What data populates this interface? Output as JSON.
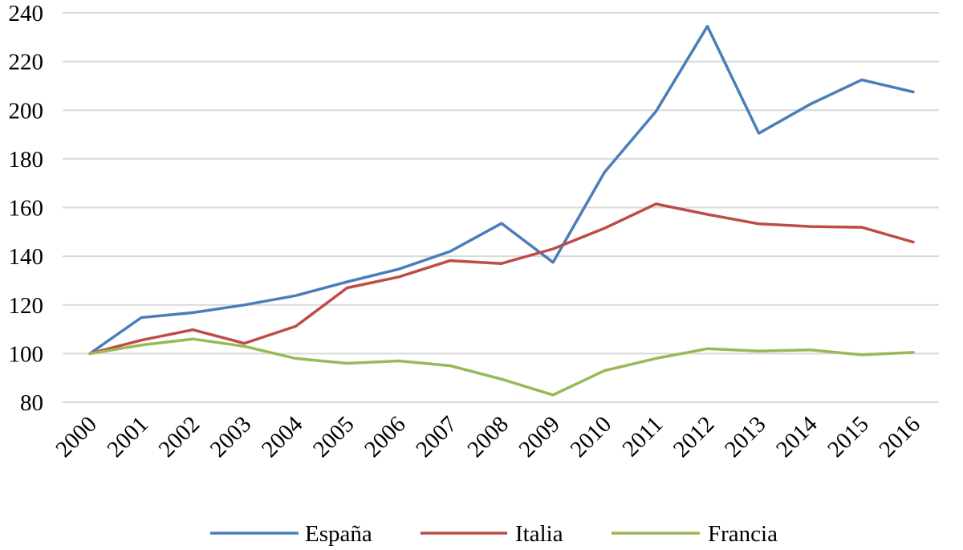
{
  "chart_data": {
    "type": "line",
    "title": "",
    "xlabel": "",
    "ylabel": "",
    "categories": [
      "2000",
      "2001",
      "2002",
      "2003",
      "2004",
      "2005",
      "2006",
      "2007",
      "2008",
      "2009",
      "2010",
      "2011",
      "2012",
      "2013",
      "2014",
      "2015",
      "2016"
    ],
    "y_ticks": [
      "80",
      "100",
      "120",
      "140",
      "160",
      "180",
      "200",
      "220",
      "240"
    ],
    "ylim": [
      80,
      240
    ],
    "grid": true,
    "legend_position": "bottom",
    "series": [
      {
        "name": "España",
        "color": "#4a7ebb",
        "values": [
          100,
          114.8,
          116.8,
          120,
          123.8,
          129.5,
          134.7,
          142,
          153.5,
          137.5,
          174.5,
          199.5,
          234.5,
          190.5,
          202.5,
          212.5,
          207.5
        ]
      },
      {
        "name": "Italia",
        "color": "#be4b48",
        "values": [
          100,
          105.5,
          109.8,
          104.2,
          111.2,
          127,
          131.5,
          138.2,
          137,
          143,
          151.5,
          161.5,
          157.2,
          153.3,
          152.2,
          151.9,
          145.8
        ]
      },
      {
        "name": "Francia",
        "color": "#98b954",
        "values": [
          100,
          103.5,
          106,
          103,
          98,
          96,
          97,
          95,
          89.5,
          83,
          93,
          98,
          102,
          101,
          101.5,
          99.5,
          100.5
        ]
      }
    ]
  }
}
